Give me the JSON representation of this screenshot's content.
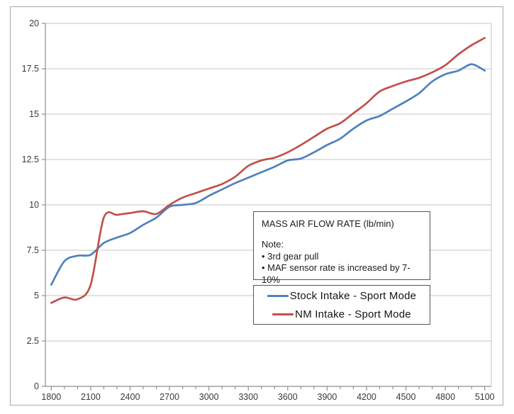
{
  "chart_data": {
    "type": "line",
    "x": [
      1800,
      1900,
      2000,
      2100,
      2200,
      2300,
      2400,
      2500,
      2600,
      2700,
      2800,
      2900,
      3000,
      3100,
      3200,
      3300,
      3400,
      3500,
      3600,
      3700,
      3800,
      3900,
      4000,
      4100,
      4200,
      4300,
      4400,
      4500,
      4600,
      4700,
      4800,
      4900,
      5000,
      5100
    ],
    "series": [
      {
        "name": "Stock Intake - Sport Mode",
        "color": "#4f81bd",
        "values": [
          5.6,
          6.9,
          7.2,
          7.25,
          7.9,
          8.2,
          8.45,
          8.9,
          9.3,
          9.9,
          10.0,
          10.1,
          10.5,
          10.85,
          11.2,
          11.5,
          11.8,
          12.1,
          12.45,
          12.55,
          12.9,
          13.3,
          13.65,
          14.2,
          14.65,
          14.9,
          15.3,
          15.7,
          16.15,
          16.8,
          17.2,
          17.4,
          17.75,
          17.4
        ]
      },
      {
        "name": "NM Intake - Sport Mode",
        "color": "#c0504d",
        "values": [
          4.6,
          4.9,
          4.8,
          5.6,
          9.3,
          9.45,
          9.55,
          9.65,
          9.5,
          10.0,
          10.4,
          10.65,
          10.9,
          11.15,
          11.55,
          12.15,
          12.45,
          12.6,
          12.9,
          13.3,
          13.75,
          14.2,
          14.5,
          15.05,
          15.6,
          16.25,
          16.55,
          16.8,
          17.0,
          17.3,
          17.7,
          18.3,
          18.8,
          19.2
        ]
      }
    ],
    "xlabel": "",
    "ylabel": "",
    "ylim": [
      0,
      20
    ],
    "yticks": [
      0,
      2.5,
      5,
      7.5,
      10,
      12.5,
      15,
      17.5,
      20
    ],
    "ytick_labels": [
      "0",
      "2.5",
      "5",
      "7.5",
      "10",
      "12.5",
      "15",
      "17.5",
      "20"
    ],
    "xticks_major": [
      1800,
      2100,
      2400,
      2700,
      3000,
      3300,
      3600,
      3900,
      4200,
      4500,
      4800,
      5100
    ],
    "xtick_minor_step": 100,
    "grid": "horizontal",
    "legend_position": "inside-lower-right"
  },
  "annotation": {
    "title": "MASS AIR FLOW RATE (lb/min)",
    "note_label": "Note:",
    "bullets": [
      "• 3rd gear pull",
      "• MAF sensor rate is increased by 7-10%"
    ]
  },
  "colors": {
    "grid": "#c4c4c4",
    "axis": "#8f8f8f",
    "tick_label": "#3a3a3a",
    "box_border": "#555555",
    "series_blue": "#4f81bd",
    "series_red": "#c0504d",
    "background": "#ffffff",
    "frame_border": "#a9a9a9"
  }
}
